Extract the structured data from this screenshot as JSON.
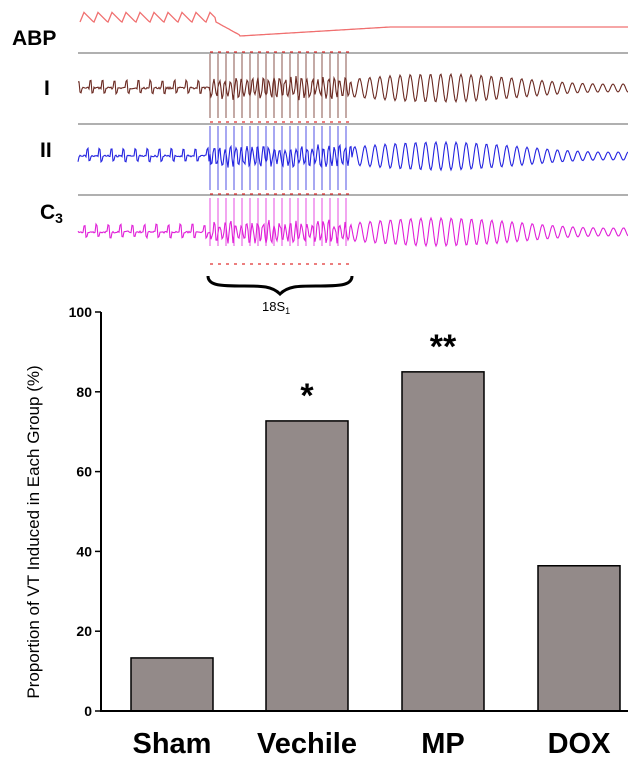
{
  "ecg_panel": {
    "trace_labels": {
      "abp": "ABP",
      "lead_i": "I",
      "lead_ii": "II",
      "c3_base": "C",
      "c3_sub": "3"
    },
    "stimulus_label_base": "18S",
    "stimulus_label_sub": "1",
    "colors": {
      "abp": "#f07070",
      "lead_i": "#6b2a22",
      "lead_ii": "#2424e0",
      "c3": "#e020d8",
      "separator": "#808080"
    }
  },
  "chart_data": {
    "type": "bar",
    "categories": [
      "Sham",
      "Vechile",
      "MP",
      "DOX"
    ],
    "values": [
      13.3,
      72.7,
      85.0,
      36.4
    ],
    "significance": [
      "",
      "*",
      "**",
      ""
    ],
    "ylabel": "Proportion of VT Induced in Each Group (%)",
    "xlabel": "",
    "ylim": [
      0,
      100
    ],
    "yticks": [
      0,
      20,
      40,
      60,
      80,
      100
    ],
    "bar_color": "#938a89",
    "grid": false,
    "legend": "none"
  }
}
